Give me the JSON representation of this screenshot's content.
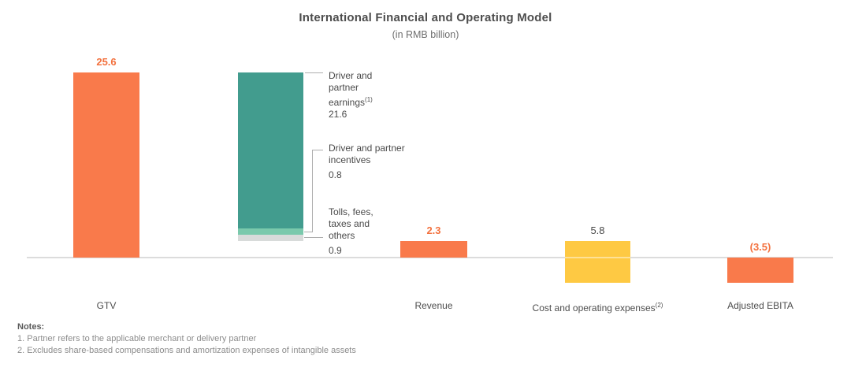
{
  "title": "International Financial and Operating Model",
  "subtitle": "(in RMB billion)",
  "colors": {
    "bar_orange": "#F97A4B",
    "bar_teal": "#429C8E",
    "bar_teal_light": "#7AC9AC",
    "bar_gray": "#D8DBDA",
    "bar_yellow": "#FEC943",
    "value_orange": "#F3713E",
    "value_dark": "#474747",
    "axis_gray": "#DCDCDC",
    "connector_gray": "#ADADAD"
  },
  "chart_data": {
    "type": "bar",
    "subtype": "waterfall",
    "title": "International Financial and Operating Model",
    "units": "RMB billion",
    "baseline_value": 0,
    "grid": false,
    "legend": false,
    "bars": [
      {
        "id": "gtv",
        "category": "GTV",
        "category_sup": "",
        "value": 25.6,
        "value_label": "25.6",
        "start": 0,
        "end": 25.6,
        "color": "#F97A4B",
        "value_label_color": "#F3713E",
        "value_label_bold": true
      },
      {
        "id": "components",
        "category": "",
        "category_sup": "",
        "start": 2.3,
        "end": 25.6,
        "stack": true,
        "segments": [
          {
            "name": "Driver and partner earnings",
            "footnote": "(1)",
            "value": 21.6,
            "color": "#429C8E"
          },
          {
            "name": "Driver and partner incentives",
            "value": 0.8,
            "color": "#7AC9AC"
          },
          {
            "name": "Tolls, fees, taxes and others",
            "value": 0.9,
            "color": "#D8DBDA"
          }
        ]
      },
      {
        "id": "revenue",
        "category": "Revenue",
        "category_sup": "",
        "value": 2.3,
        "value_label": "2.3",
        "start": 0,
        "end": 2.3,
        "color": "#F97A4B",
        "value_label_color": "#F3713E",
        "value_label_bold": true
      },
      {
        "id": "cost",
        "category": "Cost and operating expenses",
        "category_sup": "(2)",
        "value": 5.8,
        "value_label": "5.8",
        "start": -3.5,
        "end": 2.3,
        "color": "#FEC943",
        "value_label_color": "#474747",
        "value_label_bold": false
      },
      {
        "id": "ebita",
        "category": "Adjusted EBITA",
        "category_sup": "",
        "value": -3.5,
        "value_label": "(3.5)",
        "start": -3.5,
        "end": 0,
        "color": "#F97A4B",
        "value_label_color": "#F3713E",
        "value_label_bold": true
      }
    ]
  },
  "callouts": [
    {
      "text": "Driver and\npartner\nearnings",
      "sup": "(1)",
      "tail": "\n21.6"
    },
    {
      "text": "Driver and partner\nincentives\n0.8",
      "sup": "",
      "tail": ""
    },
    {
      "text": "Tolls, fees,\ntaxes and\nothers\n0.9",
      "sup": "",
      "tail": ""
    }
  ],
  "notes": {
    "heading": "Notes:",
    "items": [
      "1. Partner refers to the applicable merchant or delivery partner",
      "2. Excludes share-based compensations and amortization expenses of intangible assets"
    ]
  }
}
